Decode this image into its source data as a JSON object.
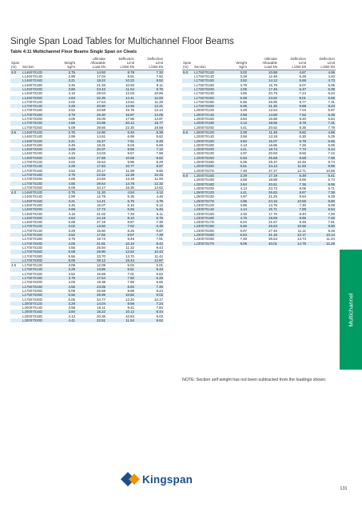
{
  "title": "Single Span Load Tables for Multichannel Floor Beams",
  "subtitle": "Table 4:11 Multichannel Floor Beams Single Span on Cleats",
  "headers": {
    "span": [
      "Span",
      "(m)"
    ],
    "section": [
      "",
      "Section"
    ],
    "weight": [
      "Weight",
      "kg/m"
    ],
    "ultimate": [
      "Ultimate",
      "Allowable",
      "Load kN"
    ],
    "defl250": [
      "Deflection",
      "Limit",
      "L/250 kN"
    ],
    "defl360": [
      "Deflection",
      "Limit",
      "L/360 kN"
    ]
  },
  "colors": {
    "stripe": "#d9ecf6",
    "tab": "#009a63",
    "logo_blue": "#1d4e8c",
    "logo_orange": "#f39200"
  },
  "left_rows": [
    [
      "3.0",
      "L14607012D",
      "2.75",
      "14.93",
      "8.78",
      "7.32"
    ],
    [
      "",
      "L14607014D",
      "2.99",
      "17.04",
      "9.51",
      "7.92"
    ],
    [
      "",
      "L14607016D",
      "3.21",
      "19.22",
      "10.22",
      "8.52"
    ],
    [
      "",
      "L14607018D",
      "3.45",
      "21.33",
      "10.93",
      "9.11"
    ],
    [
      "",
      "L14607020D",
      "3.69",
      "23.42",
      "11.64",
      "9.70"
    ],
    [
      "",
      "L14607023D",
      "4.15",
      "28.04",
      "12.03",
      "10.86"
    ],
    [
      "",
      "L14607025D",
      "4.63",
      "32.35",
      "14.41",
      "12.00"
    ],
    [
      "",
      "L17007012D",
      "3.02",
      "17.64",
      "13.54",
      "11.28"
    ],
    [
      "",
      "L17007014D",
      "3.29",
      "20.80",
      "14.66",
      "12.21"
    ],
    [
      "",
      "L17007016D",
      "3.52",
      "23.58",
      "15.76",
      "13.14"
    ],
    [
      "",
      "L17007018D",
      "3.79",
      "26.30",
      "16.87",
      "14.05"
    ],
    [
      "",
      "L17007020D",
      "4.05",
      "29.06",
      "17.96",
      "14.97"
    ],
    [
      "",
      "L17007023D",
      "4.55",
      "34.98",
      "20.12",
      "16.77"
    ],
    [
      "",
      "L17007025D",
      "5.08",
      "39.66",
      "22.30",
      "18.58"
    ],
    [
      "3.5",
      "L14607012D",
      "2.75",
      "12.80",
      "6.45",
      "5.38"
    ],
    [
      "",
      "L14607014D",
      "2.99",
      "14.61",
      "6.99",
      "5.82"
    ],
    [
      "",
      "L14607016D",
      "3.21",
      "16.47",
      "7.51",
      "6.26"
    ],
    [
      "",
      "L14607018D",
      "3.45",
      "18.31",
      "8.03",
      "6.69"
    ],
    [
      "",
      "L14607020D",
      "3.69",
      "20.07",
      "8.55",
      "7.12"
    ],
    [
      "",
      "L14607023D",
      "4.15",
      "24.03",
      "9.57",
      "7.98"
    ],
    [
      "",
      "L14607025D",
      "4.63",
      "27.69",
      "10.59",
      "8.82"
    ],
    [
      "",
      "L17007012D",
      "3.02",
      "15.54",
      "9.95",
      "8.29"
    ],
    [
      "",
      "L17007014D",
      "3.29",
      "17.83",
      "10.77",
      "8.97"
    ],
    [
      "",
      "L17007016D",
      "3.52",
      "20.17",
      "11.58",
      "9.65"
    ],
    [
      "",
      "L17007018D",
      "3.79",
      "22.55",
      "12.39",
      "10.33"
    ],
    [
      "",
      "L17007020D",
      "4.05",
      "24.92",
      "13.19",
      "11.00"
    ],
    [
      "",
      "L17007023D",
      "4.55",
      "29.64",
      "14.78",
      "12.32"
    ],
    [
      "",
      "L17007025D",
      "5.08",
      "34.17",
      "16.35",
      "13.62"
    ],
    [
      "4.0",
      "L14607012D",
      "2.75",
      "11.20",
      "4.94",
      "4.12"
    ],
    [
      "",
      "L14607014D",
      "2.99",
      "12.78",
      "5.35",
      "4.46"
    ],
    [
      "",
      "L14607016D",
      "3.21",
      "14.41",
      "5.75",
      "4.79"
    ],
    [
      "",
      "L14607018D",
      "3.45",
      "16.07",
      "6.15",
      "5.12"
    ],
    [
      "",
      "L14607020D",
      "3.69",
      "17.73",
      "6.55",
      "5.45"
    ],
    [
      "",
      "L14607023D",
      "4.15",
      "21.02",
      "7.33",
      "6.11"
    ],
    [
      "",
      "L14607025D",
      "4.63",
      "24.19",
      "8.10",
      "6.75"
    ],
    [
      "",
      "L14607023D",
      "5.08",
      "27.19",
      "8.87",
      "7.39"
    ],
    [
      "",
      "L17007012D",
      "3.02",
      "13.60",
      "7.62",
      "6.35"
    ],
    [
      "",
      "L17007014D",
      "3.29",
      "15.60",
      "8.25",
      "6.87"
    ],
    [
      "",
      "L17007016D",
      "3.52",
      "17.65",
      "8.87",
      "7.39"
    ],
    [
      "",
      "L17007018D",
      "3.79",
      "19.73",
      "9.49",
      "7.91"
    ],
    [
      "",
      "L17007020D",
      "4.05",
      "21.81",
      "10.10",
      "8.42"
    ],
    [
      "",
      "L17007023D",
      "4.55",
      "25.94",
      "11.32",
      "9.43"
    ],
    [
      "",
      "L17007025D",
      "5.08",
      "29.90",
      "12.52",
      "10.43"
    ],
    [
      "",
      "L17007028D",
      "5.56",
      "33.70",
      "13.70",
      "11.42"
    ],
    [
      "",
      "L17007030D",
      "6.05",
      "38.12",
      "15.44",
      "12.87"
    ],
    [
      "4.5",
      "L17507012D",
      "3.08",
      "12.09",
      "6.02",
      "5.01"
    ],
    [
      "",
      "L17507014D",
      "3.29",
      "13.86",
      "6.51",
      "5.43"
    ],
    [
      "",
      "L17507016D",
      "3.52",
      "15.69",
      "7.01",
      "5.84"
    ],
    [
      "",
      "L17507018D",
      "3.79",
      "17.54",
      "7.50",
      "6.25"
    ],
    [
      "",
      "L17507020D",
      "4.05",
      "19.38",
      "7.98",
      "6.65"
    ],
    [
      "",
      "L17507023D",
      "4.55",
      "23.05",
      "8.94",
      "7.45"
    ],
    [
      "",
      "L17507025D",
      "5.08",
      "26.58",
      "9.89",
      "8.24"
    ],
    [
      "",
      "L17507028D",
      "5.56",
      "29.95",
      "10.82",
      "9.02"
    ],
    [
      "",
      "L17507030D",
      "6.05",
      "34.77",
      "12.20",
      "10.17"
    ],
    [
      "",
      "L20007012D",
      "3.29",
      "14.04",
      "8.69",
      "7.24"
    ],
    [
      "",
      "L20007014D",
      "3.58",
      "16.11",
      "9.41",
      "7.84"
    ],
    [
      "",
      "L20007016D",
      "3.84",
      "18.22",
      "10.12",
      "8.44"
    ],
    [
      "",
      "L20007018D",
      "4.13",
      "20.36",
      "10.84",
      "9.03"
    ],
    [
      "",
      "L20007020D",
      "4.41",
      "22.51",
      "11.54",
      "9.62"
    ]
  ],
  "right_rows": [
    [
      "5.0",
      "L17507012D",
      "3.02",
      "10.88",
      "4.87",
      "4.06"
    ],
    [
      "",
      "L17507014D",
      "3.29",
      "12.48",
      "5.28",
      "4.40"
    ],
    [
      "",
      "L17507016D",
      "3.52",
      "14.12",
      "5.68",
      "4.73"
    ],
    [
      "",
      "L17507018D",
      "3.79",
      "15.78",
      "6.07",
      "5.06"
    ],
    [
      "",
      "L17507020D",
      "4.05",
      "17.45",
      "6.47",
      "5.39"
    ],
    [
      "",
      "L17507023D",
      "4.55",
      "20.75",
      "7.24",
      "6.04"
    ],
    [
      "",
      "L17507025D",
      "5.08",
      "23.92",
      "8.01",
      "6.68"
    ],
    [
      "",
      "L17507028D",
      "5.56",
      "26.96",
      "8.77",
      "7.31"
    ],
    [
      "",
      "L17507030D",
      "6.05",
      "31.30",
      "9.88",
      "8.23"
    ],
    [
      "",
      "L20007012D",
      "3.29",
      "12.64",
      "7.04",
      "5.87"
    ],
    [
      "",
      "L20007014D",
      "3.58",
      "14.50",
      "7.62",
      "6.35"
    ],
    [
      "",
      "L20007016D",
      "3.84",
      "16.58",
      "8.20",
      "6.84"
    ],
    [
      "",
      "L20007018D",
      "4.13",
      "18.66",
      "8.78",
      "7.31"
    ],
    [
      "",
      "L20007020D",
      "4.41",
      "20.62",
      "9.35",
      "7.79"
    ],
    [
      "5.5",
      "L20007012D",
      "3.29",
      "11.49",
      "5.82",
      "4.85"
    ],
    [
      "",
      "L20007014D",
      "3.58",
      "13.18",
      "6.30",
      "5.25"
    ],
    [
      "",
      "L20007016D",
      "3.84",
      "15.07",
      "6.78",
      "5.65"
    ],
    [
      "",
      "L20007018D",
      "4.13",
      "16.96",
      "7.26",
      "6.05"
    ],
    [
      "",
      "L20007020D",
      "4.41",
      "18.74",
      "7.73",
      "6.44"
    ],
    [
      "",
      "L20007023D",
      "4.97",
      "20.93",
      "8.66",
      "7.22"
    ],
    [
      "",
      "L20007025D",
      "5.53",
      "25.68",
      "9.58",
      "7.98"
    ],
    [
      "",
      "L20007028D",
      "6.05",
      "29.37",
      "10.49",
      "8.74"
    ],
    [
      "",
      "L20007030D",
      "6.61",
      "34.13",
      "11.83",
      "9.86"
    ],
    [
      "",
      "L20007027D",
      "7.49",
      "37.27",
      "12.71",
      "10.59"
    ],
    [
      "6.0",
      "L20007016D",
      "3.29",
      "17.19",
      "6.49",
      "5.41"
    ],
    [
      "",
      "L20007018D",
      "3.58",
      "18.88",
      "6.69",
      "5.74"
    ],
    [
      "",
      "L20007018D",
      "3.84",
      "20.51",
      "7.36",
      "6.06"
    ],
    [
      "",
      "L20007020D",
      "4.13",
      "23.72",
      "8.05",
      "6.71"
    ],
    [
      "",
      "L25007012D",
      "4.41",
      "26.83",
      "8.87",
      "7.38"
    ],
    [
      "",
      "L25007023D",
      "4.97",
      "31.25",
      "9.94",
      "8.28"
    ],
    [
      "",
      "L25007027D",
      "4.95",
      "24.16",
      "10.68",
      "8.90"
    ],
    [
      "",
      "L23007012D",
      "3.86",
      "13.75",
      "7.30",
      "6.08"
    ],
    [
      "",
      "L23007014D",
      "4.14",
      "15.71",
      "7.88",
      "6.54"
    ],
    [
      "",
      "L23007016D",
      "4.45",
      "17.70",
      "8.40",
      "7.00"
    ],
    [
      "",
      "L23007018D",
      "4.76",
      "19.69",
      "8.95",
      "7.46"
    ],
    [
      "",
      "L23007017D",
      "5.04",
      "21.67",
      "9.49",
      "7.91"
    ],
    [
      "",
      "L23007019D",
      "5.66",
      "25.63",
      "10.56",
      "8.80"
    ],
    [
      "",
      "L23007025D",
      "5.97",
      "27.46",
      "11.11",
      "9.26"
    ],
    [
      "",
      "L23007028D",
      "6.53",
      "31.16",
      "12.17",
      "10.14"
    ],
    [
      "",
      "L23007029D",
      "7.48",
      "36.53",
      "13.73",
      "11.44"
    ],
    [
      "",
      "L23007027D",
      "8.06",
      "40.01",
      "14.75",
      "12.29"
    ]
  ],
  "left_groups": [
    14,
    28,
    45
  ],
  "right_groups": [
    14,
    24
  ],
  "note": "NOTE: Section self weight has not been subtracted from the loadings shown.",
  "logo_text": "Kingspan",
  "side_tab": "Multichannel",
  "page_number": "131"
}
